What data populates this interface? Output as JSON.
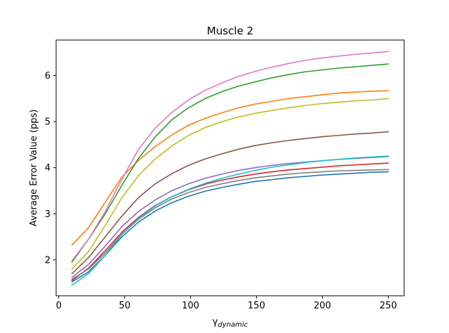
{
  "chart_data": {
    "type": "line",
    "title": "Muscle 2",
    "xlabel": {
      "base": "γ",
      "subscript": "dynamic"
    },
    "ylabel": "Average Error Value (pps)",
    "xlim": [
      -2,
      262
    ],
    "ylim": [
      1.22,
      6.77
    ],
    "x_ticks": [
      0,
      50,
      100,
      150,
      200,
      250
    ],
    "y_ticks": [
      2,
      3,
      4,
      5,
      6
    ],
    "grid": false,
    "legend": null,
    "x": [
      10,
      22.6,
      35.3,
      47.9,
      60.5,
      73.2,
      85.8,
      98.4,
      111.1,
      123.7,
      136.3,
      148.9,
      161.6,
      174.2,
      186.8,
      199.5,
      212.1,
      224.7,
      237.4,
      250
    ],
    "series": [
      {
        "color": "#1f77b4",
        "values": [
          1.52,
          1.74,
          2.1,
          2.5,
          2.82,
          3.06,
          3.24,
          3.38,
          3.49,
          3.57,
          3.64,
          3.7,
          3.74,
          3.78,
          3.81,
          3.84,
          3.86,
          3.88,
          3.9,
          3.91
        ]
      },
      {
        "color": "#ff7f0e",
        "values": [
          2.32,
          2.7,
          3.25,
          3.8,
          4.16,
          4.46,
          4.71,
          4.92,
          5.07,
          5.19,
          5.3,
          5.38,
          5.44,
          5.5,
          5.54,
          5.58,
          5.62,
          5.64,
          5.66,
          5.67
        ]
      },
      {
        "color": "#2ca02c",
        "values": [
          1.95,
          2.45,
          3.0,
          3.62,
          4.2,
          4.67,
          5.04,
          5.3,
          5.5,
          5.65,
          5.77,
          5.86,
          5.95,
          6.02,
          6.08,
          6.12,
          6.16,
          6.19,
          6.22,
          6.25
        ]
      },
      {
        "color": "#d62728",
        "values": [
          1.55,
          1.82,
          2.2,
          2.6,
          2.92,
          3.18,
          3.37,
          3.52,
          3.64,
          3.73,
          3.8,
          3.86,
          3.91,
          3.95,
          3.98,
          4.01,
          4.04,
          4.06,
          4.08,
          4.1
        ]
      },
      {
        "color": "#9467bd",
        "values": [
          1.62,
          1.9,
          2.3,
          2.72,
          3.05,
          3.3,
          3.5,
          3.65,
          3.77,
          3.86,
          3.94,
          4.0,
          4.05,
          4.09,
          4.12,
          4.15,
          4.18,
          4.2,
          4.22,
          4.24
        ]
      },
      {
        "color": "#8c564b",
        "values": [
          1.7,
          2.05,
          2.5,
          2.95,
          3.35,
          3.65,
          3.87,
          4.05,
          4.19,
          4.3,
          4.4,
          4.48,
          4.54,
          4.59,
          4.63,
          4.67,
          4.7,
          4.73,
          4.75,
          4.78
        ]
      },
      {
        "color": "#e377c2",
        "values": [
          1.98,
          2.45,
          3.05,
          3.75,
          4.4,
          4.86,
          5.2,
          5.47,
          5.68,
          5.84,
          5.98,
          6.09,
          6.18,
          6.26,
          6.33,
          6.38,
          6.42,
          6.46,
          6.49,
          6.52
        ]
      },
      {
        "color": "#7f7f7f",
        "values": [
          1.58,
          1.8,
          2.15,
          2.56,
          2.88,
          3.13,
          3.32,
          3.46,
          3.57,
          3.65,
          3.72,
          3.78,
          3.82,
          3.86,
          3.89,
          3.91,
          3.93,
          3.94,
          3.95,
          3.96
        ]
      },
      {
        "color": "#bcbd22",
        "values": [
          1.8,
          2.18,
          2.75,
          3.35,
          3.83,
          4.19,
          4.47,
          4.7,
          4.87,
          5.0,
          5.1,
          5.18,
          5.24,
          5.3,
          5.35,
          5.39,
          5.42,
          5.45,
          5.47,
          5.5
        ]
      },
      {
        "color": "#17becf",
        "values": [
          1.45,
          1.7,
          2.1,
          2.55,
          2.9,
          3.17,
          3.37,
          3.53,
          3.66,
          3.77,
          3.86,
          3.94,
          4.01,
          4.06,
          4.11,
          4.15,
          4.18,
          4.21,
          4.23,
          4.25
        ]
      }
    ]
  }
}
